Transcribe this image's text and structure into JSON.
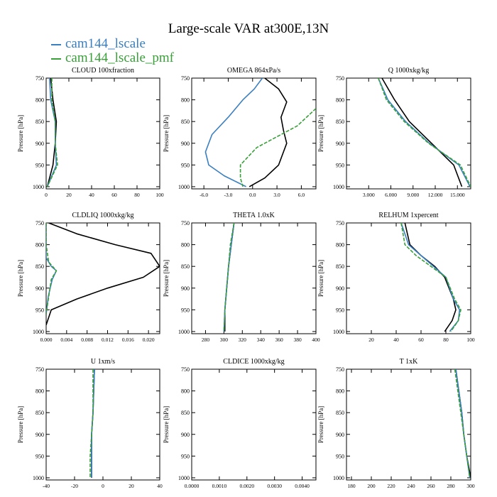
{
  "figure": {
    "title": "Large-scale VAR at300E,13N",
    "series_colors": {
      "cam144_lscale": "#3a7fc1",
      "cam144_lscale_pmf": "#3aa03a",
      "obs": "#000000"
    }
  },
  "legend": [
    {
      "name": "cam144_lscale",
      "color": "#3a7fc1"
    },
    {
      "name": "cam144_lscale_pmf",
      "color": "#3aa03a"
    }
  ],
  "chart_data": [
    {
      "type": "line",
      "title": "CLOUD 100xfraction",
      "ylabel": "Pressure [hPa]",
      "xlim": [
        0,
        100
      ],
      "ylim": [
        750,
        1005
      ],
      "xticks": [
        0,
        20,
        40,
        60,
        80,
        100
      ],
      "xtick_labels": [
        "0",
        "20",
        "40",
        "60",
        "80",
        "100"
      ],
      "yticks": [
        750,
        800,
        850,
        900,
        950,
        1000
      ],
      "ytick_labels": [
        "750",
        "800",
        "850",
        "900",
        "950",
        "1000"
      ],
      "series": [
        {
          "color": "#000000",
          "points": [
            [
              4,
              750
            ],
            [
              6,
              800
            ],
            [
              9,
              850
            ],
            [
              8,
              900
            ],
            [
              6,
              950
            ],
            [
              1,
              1000
            ]
          ]
        },
        {
          "color": "#3a7fc1",
          "points": [
            [
              3,
              750
            ],
            [
              4,
              800
            ],
            [
              8,
              850
            ],
            [
              8,
              900
            ],
            [
              9,
              950
            ],
            [
              1,
              1000
            ]
          ]
        },
        {
          "color": "#3aa03a",
          "dashed": true,
          "points": [
            [
              5,
              750
            ],
            [
              5,
              800
            ],
            [
              8,
              850
            ],
            [
              8,
              900
            ],
            [
              10,
              950
            ],
            [
              1,
              1000
            ]
          ]
        }
      ]
    },
    {
      "type": "line",
      "title": "OMEGA 864xPa/s",
      "ylabel": "Pressure [hPa]",
      "xlim": [
        -7.5,
        7.8
      ],
      "ylim": [
        750,
        1005
      ],
      "xticks": [
        -6,
        -3,
        0,
        3,
        6
      ],
      "xtick_labels": [
        "-6.0",
        "-3.0",
        "0.0",
        "3.0",
        "6.0"
      ],
      "yticks": [
        750,
        800,
        850,
        900,
        950,
        1000
      ],
      "ytick_labels": [
        "750",
        "800",
        "850",
        "900",
        "950",
        "1000"
      ],
      "series": [
        {
          "color": "#000000",
          "points": [
            [
              1.5,
              750
            ],
            [
              3.2,
              775
            ],
            [
              4.2,
              805
            ],
            [
              3.5,
              840
            ],
            [
              3.8,
              870
            ],
            [
              4.2,
              900
            ],
            [
              3.2,
              950
            ],
            [
              1.5,
              980
            ],
            [
              -0.4,
              1000
            ]
          ]
        },
        {
          "color": "#3a7fc1",
          "points": [
            [
              1.2,
              750
            ],
            [
              0.2,
              775
            ],
            [
              -1.2,
              800
            ],
            [
              -3,
              840
            ],
            [
              -5,
              880
            ],
            [
              -5.8,
              920
            ],
            [
              -5.4,
              950
            ],
            [
              -3.5,
              975
            ],
            [
              -0.8,
              1000
            ]
          ]
        },
        {
          "color": "#3aa03a",
          "dashed": true,
          "points": [
            [
              7.8,
              820
            ],
            [
              5.5,
              860
            ],
            [
              3.5,
              880
            ],
            [
              0.5,
              910
            ],
            [
              -1.5,
              950
            ],
            [
              -1.5,
              980
            ],
            [
              -1.2,
              1000
            ]
          ]
        }
      ]
    },
    {
      "type": "line",
      "title": "Q 1000xkg/kg",
      "ylabel": "Pressure [hPa]",
      "xlim": [
        0,
        16800
      ],
      "ylim": [
        750,
        1005
      ],
      "xticks": [
        3000,
        6000,
        9000,
        12000,
        15000
      ],
      "xtick_labels": [
        "3.000",
        "6.000",
        "9.000",
        "12.000",
        "15.000"
      ],
      "yticks": [
        750,
        800,
        850,
        900,
        950,
        1000
      ],
      "ytick_labels": [
        "750",
        "800",
        "850",
        "900",
        "950",
        "1000"
      ],
      "series": [
        {
          "color": "#000000",
          "points": [
            [
              4800,
              750
            ],
            [
              6500,
              800
            ],
            [
              8500,
              850
            ],
            [
              11500,
              900
            ],
            [
              14500,
              950
            ],
            [
              15600,
              1000
            ]
          ]
        },
        {
          "color": "#3a7fc1",
          "points": [
            [
              4300,
              750
            ],
            [
              5600,
              800
            ],
            [
              8000,
              850
            ],
            [
              11200,
              900
            ],
            [
              15200,
              950
            ],
            [
              16700,
              1000
            ]
          ]
        },
        {
          "color": "#3aa03a",
          "dashed": true,
          "points": [
            [
              4300,
              750
            ],
            [
              5400,
              800
            ],
            [
              7800,
              850
            ],
            [
              11100,
              900
            ],
            [
              15400,
              950
            ],
            [
              16800,
              1000
            ]
          ]
        }
      ]
    },
    {
      "type": "line",
      "title": "CLDLIQ 1000xkg/kg",
      "ylabel": "Pressure [hPa]",
      "xlim": [
        0,
        0.0222
      ],
      "ylim": [
        750,
        1005
      ],
      "xticks": [
        0,
        0.004,
        0.008,
        0.012,
        0.016,
        0.02
      ],
      "xtick_labels": [
        "0.000",
        "0.004",
        "0.008",
        "0.012",
        "0.016",
        "0.020"
      ],
      "yticks": [
        750,
        800,
        850,
        900,
        950,
        1000
      ],
      "ytick_labels": [
        "750",
        "800",
        "850",
        "900",
        "950",
        "1000"
      ],
      "series": [
        {
          "color": "#000000",
          "points": [
            [
              0.0005,
              750
            ],
            [
              0.006,
              775
            ],
            [
              0.0135,
              800
            ],
            [
              0.0205,
              820
            ],
            [
              0.0222,
              850
            ],
            [
              0.019,
              875
            ],
            [
              0.012,
              900
            ],
            [
              0.006,
              925
            ],
            [
              0.001,
              950
            ],
            [
              0,
              985
            ]
          ]
        },
        {
          "color": "#3a7fc1",
          "points": [
            [
              0,
              750
            ],
            [
              0,
              800
            ],
            [
              0,
              830
            ],
            [
              0.001,
              850
            ],
            [
              0.002,
              860
            ],
            [
              0.0012,
              880
            ],
            [
              0.0004,
              920
            ],
            [
              0,
              960
            ]
          ]
        },
        {
          "color": "#3aa03a",
          "dashed": true,
          "points": [
            [
              0,
              750
            ],
            [
              0,
              800
            ],
            [
              0.0005,
              840
            ],
            [
              0.002,
              860
            ],
            [
              0.001,
              880
            ],
            [
              0.0005,
              920
            ],
            [
              0,
              960
            ]
          ]
        }
      ]
    },
    {
      "type": "line",
      "title": "THETA 1.0xK",
      "ylabel": "Pressure [hPa]",
      "xlim": [
        265,
        400
      ],
      "ylim": [
        750,
        1005
      ],
      "xticks": [
        280,
        300,
        320,
        340,
        360,
        380,
        400
      ],
      "xtick_labels": [
        "280",
        "300",
        "320",
        "340",
        "360",
        "380",
        "400"
      ],
      "yticks": [
        750,
        800,
        850,
        900,
        950,
        1000
      ],
      "ytick_labels": [
        "750",
        "800",
        "850",
        "900",
        "950",
        "1000"
      ],
      "series": [
        {
          "color": "#000000",
          "points": [
            [
              311,
              750
            ],
            [
              308,
              800
            ],
            [
              305,
              850
            ],
            [
              303,
              900
            ],
            [
              301,
              950
            ],
            [
              301,
              1000
            ]
          ]
        },
        {
          "color": "#3a7fc1",
          "points": [
            [
              311,
              750
            ],
            [
              308,
              800
            ],
            [
              305,
              850
            ],
            [
              303,
              900
            ],
            [
              301,
              950
            ],
            [
              300,
              1000
            ]
          ]
        },
        {
          "color": "#3aa03a",
          "dashed": true,
          "points": [
            [
              311,
              750
            ],
            [
              307,
              800
            ],
            [
              305,
              850
            ],
            [
              303,
              900
            ],
            [
              301,
              950
            ],
            [
              300,
              1000
            ]
          ]
        }
      ]
    },
    {
      "type": "line",
      "title": "RELHUM 1xpercent",
      "ylabel": "Pressure [hPa]",
      "xlim": [
        0,
        100
      ],
      "ylim": [
        750,
        1005
      ],
      "xticks": [
        20,
        40,
        60,
        80,
        100
      ],
      "xtick_labels": [
        "20",
        "40",
        "60",
        "80",
        "100"
      ],
      "yticks": [
        750,
        800,
        850,
        900,
        950,
        1000
      ],
      "ytick_labels": [
        "750",
        "800",
        "850",
        "900",
        "950",
        "1000"
      ],
      "series": [
        {
          "color": "#000000",
          "points": [
            [
              47,
              750
            ],
            [
              51,
              800
            ],
            [
              60,
              825
            ],
            [
              71,
              850
            ],
            [
              79,
              875
            ],
            [
              86,
              925
            ],
            [
              88,
              950
            ],
            [
              85,
              975
            ],
            [
              79,
              1000
            ]
          ]
        },
        {
          "color": "#3a7fc1",
          "points": [
            [
              44,
              750
            ],
            [
              50,
              800
            ],
            [
              60,
              825
            ],
            [
              70,
              850
            ],
            [
              80,
              875
            ],
            [
              86,
              925
            ],
            [
              91,
              950
            ],
            [
              90,
              975
            ],
            [
              83,
              1000
            ]
          ]
        },
        {
          "color": "#3aa03a",
          "dashed": true,
          "points": [
            [
              44,
              750
            ],
            [
              47,
              800
            ],
            [
              56,
              825
            ],
            [
              68,
              850
            ],
            [
              80,
              875
            ],
            [
              87,
              925
            ],
            [
              92,
              950
            ],
            [
              90,
              975
            ],
            [
              84,
              1000
            ]
          ]
        }
      ]
    },
    {
      "type": "line",
      "title": "U 1xm/s",
      "ylabel": "Pressure [hPa]",
      "xlim": [
        -40,
        40
      ],
      "ylim": [
        750,
        1005
      ],
      "xticks": [
        -40,
        -20,
        0,
        20,
        40
      ],
      "xtick_labels": [
        "-40",
        "-20",
        "0",
        "20",
        "40"
      ],
      "yticks": [
        750,
        800,
        850,
        900,
        950,
        1000
      ],
      "ytick_labels": [
        "750",
        "800",
        "850",
        "900",
        "950",
        "1000"
      ],
      "series": [
        {
          "color": "#000000",
          "points": [
            [
              -6,
              750
            ],
            [
              -7,
              850
            ],
            [
              -8,
              900
            ],
            [
              -8,
              950
            ],
            [
              -8,
              1000
            ]
          ]
        },
        {
          "color": "#3a7fc1",
          "points": [
            [
              -6,
              750
            ],
            [
              -7,
              850
            ],
            [
              -8,
              900
            ],
            [
              -8,
              950
            ],
            [
              -8,
              1000
            ]
          ]
        },
        {
          "color": "#3aa03a",
          "dashed": true,
          "points": [
            [
              -7,
              750
            ],
            [
              -7,
              850
            ],
            [
              -8,
              900
            ],
            [
              -9,
              950
            ],
            [
              -9,
              1000
            ]
          ]
        }
      ]
    },
    {
      "type": "line",
      "title": "CLDICE 1000xkg/kg",
      "ylabel": "Pressure [hPa]",
      "xlim": [
        0,
        0.0045
      ],
      "ylim": [
        750,
        1005
      ],
      "xticks": [
        0,
        0.001,
        0.002,
        0.003,
        0.004
      ],
      "xtick_labels": [
        "0.0000",
        "0.0010",
        "0.0020",
        "0.0030",
        "0.0040"
      ],
      "yticks": [
        750,
        800,
        850,
        900,
        950,
        1000
      ],
      "ytick_labels": [
        "750",
        "800",
        "850",
        "900",
        "950",
        "1000"
      ],
      "series": []
    },
    {
      "type": "line",
      "title": "T 1xK",
      "ylabel": "Pressure [hPa]",
      "xlim": [
        175,
        300
      ],
      "ylim": [
        750,
        1005
      ],
      "xticks": [
        180,
        200,
        220,
        240,
        260,
        280,
        300
      ],
      "xtick_labels": [
        "180",
        "200",
        "220",
        "240",
        "260",
        "280",
        "300"
      ],
      "yticks": [
        750,
        800,
        850,
        900,
        950,
        1000
      ],
      "ytick_labels": [
        "750",
        "800",
        "850",
        "900",
        "950",
        "1000"
      ],
      "series": [
        {
          "color": "#000000",
          "points": [
            [
              285,
              750
            ],
            [
              288,
              800
            ],
            [
              291,
              850
            ],
            [
              293,
              900
            ],
            [
              296,
              950
            ],
            [
              300,
              1000
            ]
          ]
        },
        {
          "color": "#3a7fc1",
          "points": [
            [
              285,
              750
            ],
            [
              288,
              800
            ],
            [
              291,
              850
            ],
            [
              293,
              900
            ],
            [
              296,
              950
            ],
            [
              299,
              1000
            ]
          ]
        },
        {
          "color": "#3aa03a",
          "dashed": true,
          "points": [
            [
              284,
              750
            ],
            [
              287,
              800
            ],
            [
              290,
              850
            ],
            [
              293,
              900
            ],
            [
              296,
              950
            ],
            [
              299,
              1000
            ]
          ]
        }
      ]
    }
  ]
}
